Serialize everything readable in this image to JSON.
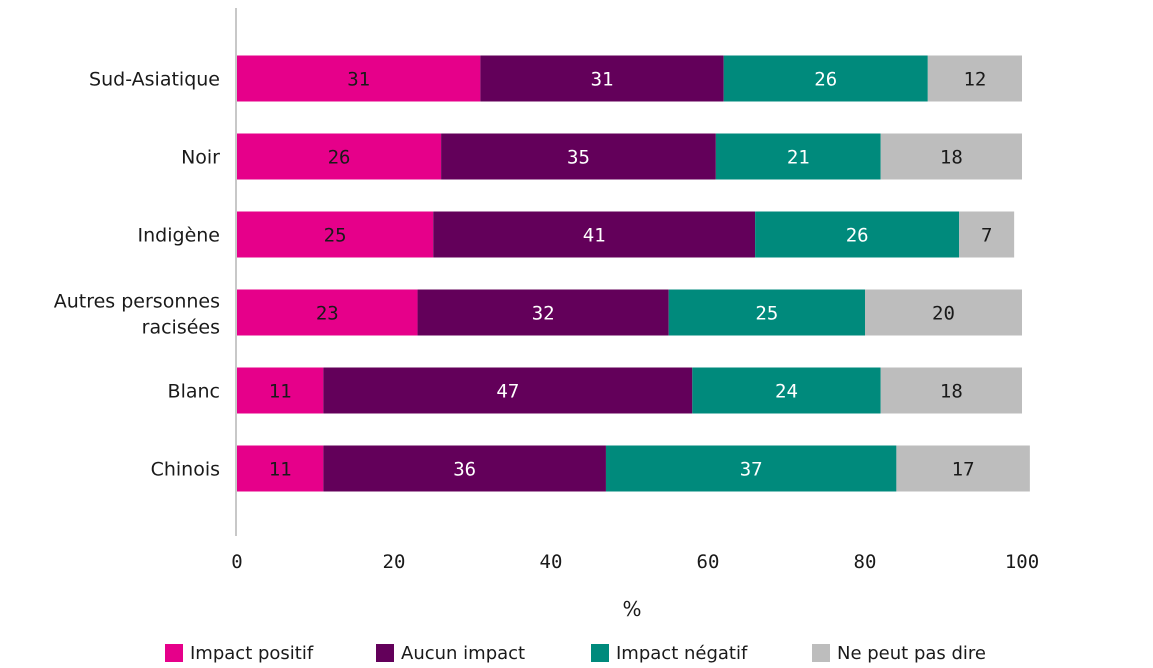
{
  "chart_data": {
    "type": "bar",
    "orientation": "horizontal",
    "stacked": true,
    "categories": [
      "Sud-Asiatique",
      "Noir",
      "Indigène",
      "Autres personnes racisées",
      "Blanc",
      "Chinois"
    ],
    "series": [
      {
        "name": "Impact positif",
        "color": "#e6008a",
        "label_color": "#1a1a1a",
        "values": [
          31,
          26,
          25,
          23,
          11,
          11
        ]
      },
      {
        "name": "Aucun impact",
        "color": "#63005a",
        "label_color": "#ffffff",
        "values": [
          31,
          35,
          41,
          32,
          47,
          36
        ]
      },
      {
        "name": "Impact négatif",
        "color": "#008a7c",
        "label_color": "#ffffff",
        "values": [
          26,
          21,
          26,
          25,
          24,
          37
        ]
      },
      {
        "name": "Ne peut pas dire",
        "color": "#bdbdbd",
        "label_color": "#1a1a1a",
        "values": [
          12,
          18,
          7,
          20,
          18,
          17
        ]
      }
    ],
    "xlabel": "%",
    "xlim": [
      0,
      100
    ],
    "xticks": [
      0,
      20,
      40,
      60,
      80,
      100
    ],
    "grid": false,
    "legend_position": "bottom"
  }
}
